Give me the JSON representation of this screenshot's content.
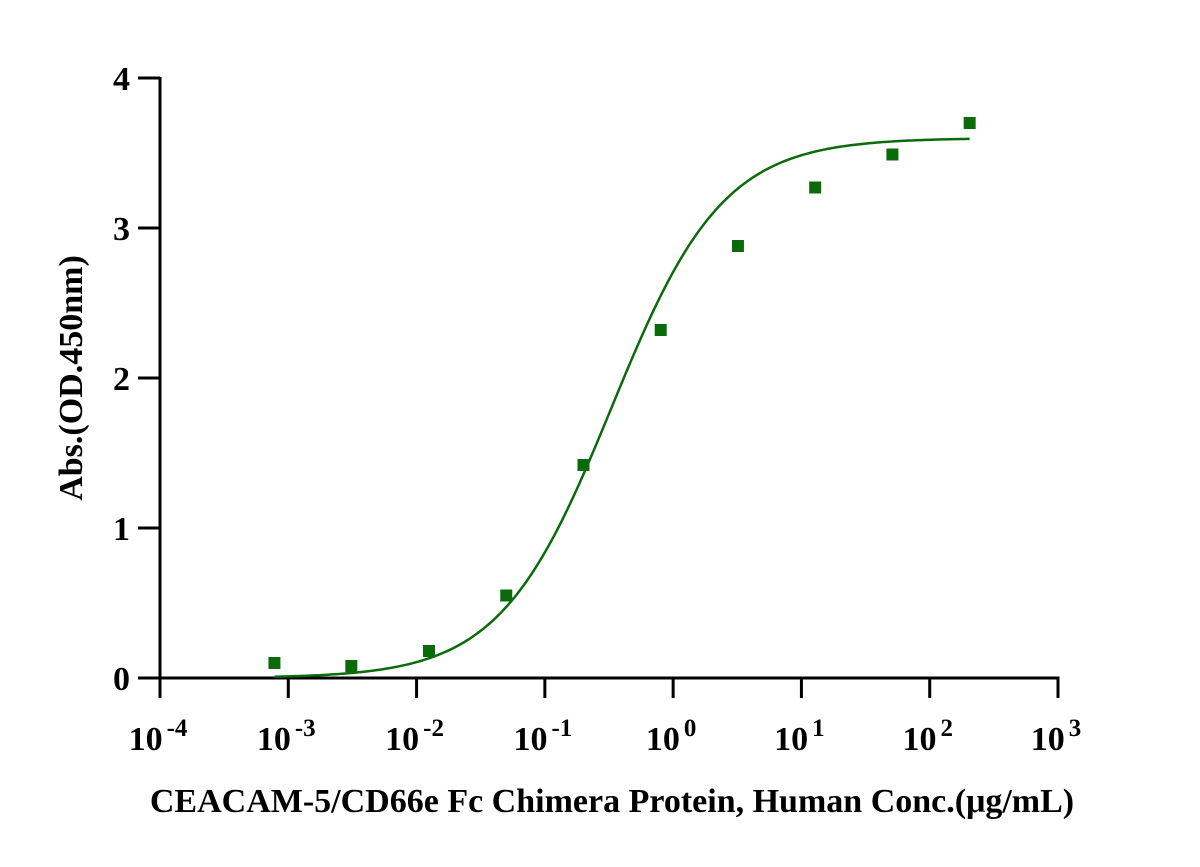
{
  "chart_data": {
    "type": "scatter",
    "title": "",
    "xlabel": "CEACAM-5/CD66e Fc Chimera Protein, Human Conc.(μg/mL)",
    "ylabel": "Abs.(OD.450nm)",
    "x_scale": "log10",
    "xlim": [
      0.0001,
      1000
    ],
    "ylim": [
      0,
      4
    ],
    "y_ticks": [
      0,
      1,
      2,
      3,
      4
    ],
    "x_tick_exponents": [
      -4,
      -3,
      -2,
      -1,
      0,
      1,
      2,
      3
    ],
    "x_tick_base": "10",
    "grid": false,
    "legend": false,
    "series": [
      {
        "marker": "square",
        "color": "#0b6b0b",
        "x": [
          0.00078,
          0.0031,
          0.0125,
          0.05,
          0.2,
          0.8,
          3.2,
          12.8,
          51.2,
          204.8
        ],
        "y": [
          0.1,
          0.08,
          0.18,
          0.55,
          1.42,
          2.32,
          2.88,
          3.27,
          3.49,
          3.7
        ]
      }
    ],
    "fit_curve": {
      "model": "4PL",
      "color": "#0b6b0b",
      "bottom": 0.0,
      "top": 3.6,
      "ec50": 0.33,
      "hill": 1.0,
      "x_range": [
        0.00078,
        204.8
      ]
    }
  }
}
